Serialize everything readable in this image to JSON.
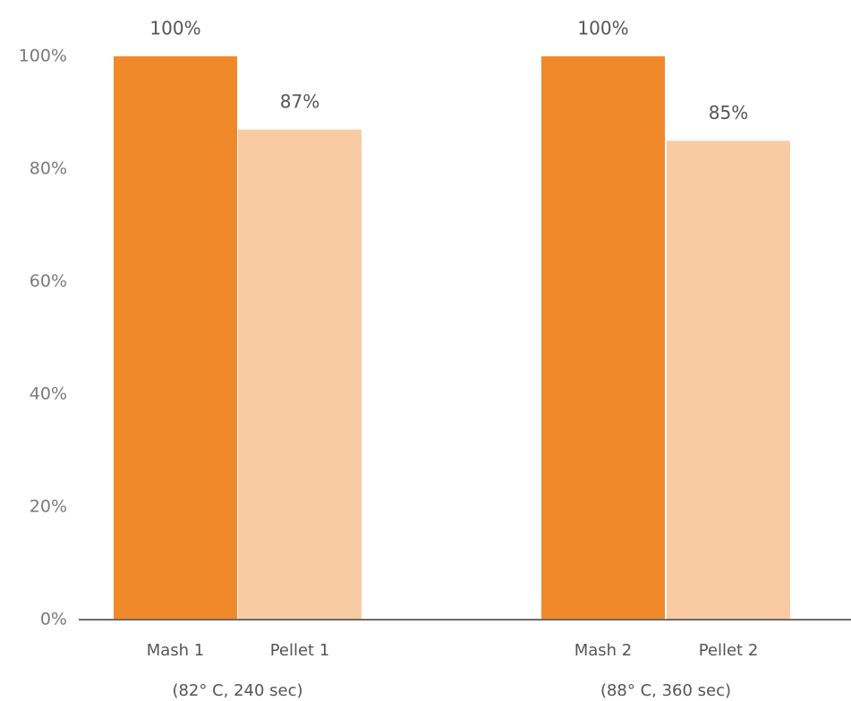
{
  "chart_data": {
    "type": "bar",
    "categories": [
      "Mash 1",
      "Pellet 1",
      "Mash 2",
      "Pellet 2"
    ],
    "values": [
      100,
      87,
      100,
      85
    ],
    "value_labels": [
      "100%",
      "87%",
      "100%",
      "85%"
    ],
    "colors": [
      "#f0892a",
      "#f8cba3",
      "#f0892a",
      "#f8cba3"
    ],
    "groups": [
      "(82° C, 240 sec)",
      "(88° C, 360 sec)"
    ],
    "ylim": [
      0,
      100
    ],
    "yticks": [
      {
        "value": 0,
        "label": "0%"
      },
      {
        "value": 20,
        "label": "20%"
      },
      {
        "value": 40,
        "label": "40%"
      },
      {
        "value": 60,
        "label": "60%"
      },
      {
        "value": 80,
        "label": "80%"
      },
      {
        "value": 100,
        "label": "100%"
      }
    ],
    "grid": false
  }
}
